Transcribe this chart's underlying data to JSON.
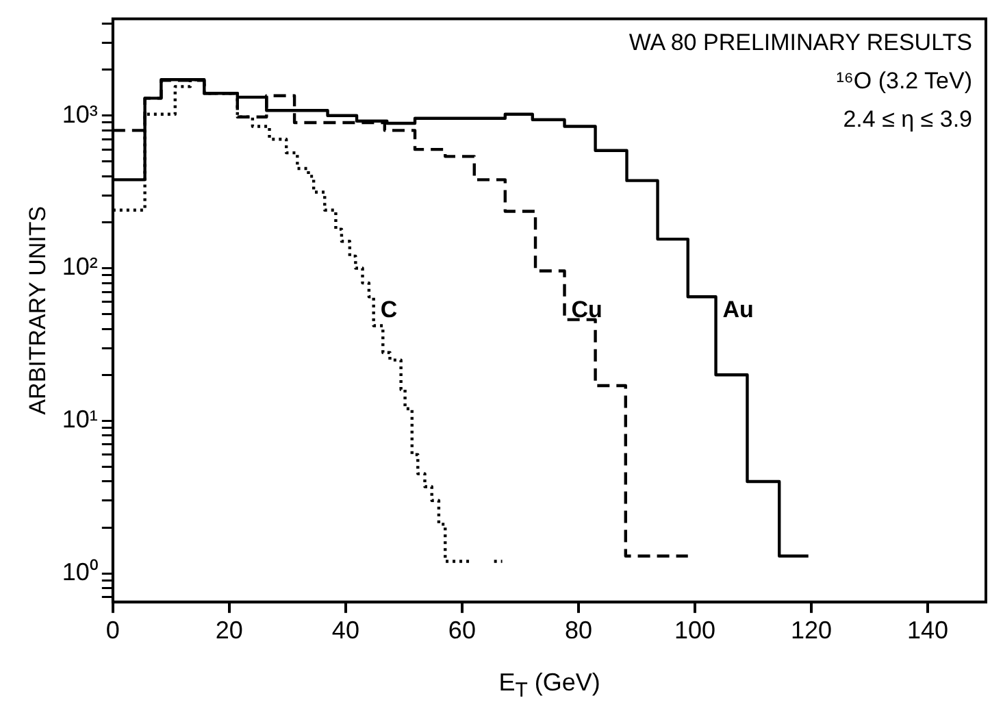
{
  "chart_data": {
    "type": "step",
    "xlabel": "E$_{T}$ (GeV)",
    "ylabel": "ARBITRARY UNITS",
    "log": true,
    "legend": false,
    "xlim": [
      0,
      150
    ],
    "xticks": [
      0,
      20,
      40,
      60,
      80,
      100,
      120,
      140
    ],
    "ylim": [
      0.65,
      4300
    ],
    "yticks": [
      {
        "value": 0.7,
        "label": null
      },
      {
        "value": 0.8,
        "label": null
      },
      {
        "value": 0.9,
        "label": null
      },
      {
        "value": 1,
        "label": "10⁰"
      },
      {
        "value": 2,
        "label": null
      },
      {
        "value": 3,
        "label": null
      },
      {
        "value": 4,
        "label": null
      },
      {
        "value": 5,
        "label": null
      },
      {
        "value": 6,
        "label": null
      },
      {
        "value": 7,
        "label": null
      },
      {
        "value": 8,
        "label": null
      },
      {
        "value": 9,
        "label": null
      },
      {
        "value": 10,
        "label": "10¹"
      },
      {
        "value": 20,
        "label": null
      },
      {
        "value": 30,
        "label": null
      },
      {
        "value": 40,
        "label": null
      },
      {
        "value": 50,
        "label": null
      },
      {
        "value": 60,
        "label": null
      },
      {
        "value": 70,
        "label": null
      },
      {
        "value": 80,
        "label": null
      },
      {
        "value": 90,
        "label": null
      },
      {
        "value": 100,
        "label": "10²"
      },
      {
        "value": 200,
        "label": null
      },
      {
        "value": 300,
        "label": null
      },
      {
        "value": 400,
        "label": null
      },
      {
        "value": 500,
        "label": null
      },
      {
        "value": 600,
        "label": null
      },
      {
        "value": 700,
        "label": null
      },
      {
        "value": 800,
        "label": null
      },
      {
        "value": 900,
        "label": null
      },
      {
        "value": 1000,
        "label": "10³"
      },
      {
        "value": 2000,
        "label": null
      },
      {
        "value": 3000,
        "label": null
      },
      {
        "value": 4000,
        "label": null
      }
    ],
    "annotations": [
      "WA 80 PRELIMINARY RESULTS",
      "¹⁶O (3.2 TeV)",
      "2.4 ≤ η ≤ 3.9"
    ],
    "series": [
      {
        "name": "C",
        "color": "#000000",
        "line_style": "dotted",
        "x": [
          0,
          5.5,
          10.7,
          13.3,
          15.7,
          21.4,
          24,
          26.9,
          29.8,
          31.7,
          33.6,
          34.5,
          36.4,
          38.3,
          39.3,
          40.7,
          41.7,
          42.9,
          44,
          44.8,
          46.4,
          47.6,
          49.5,
          50.2,
          51.4,
          52.4,
          53.6,
          54.8,
          56,
          57.1,
          61.9,
          63.7,
          65.5,
          66.9
        ],
        "values": [
          240,
          1020,
          1550,
          1720,
          1400,
          980,
          850,
          700,
          570,
          450,
          400,
          315,
          240,
          180,
          150,
          120,
          100,
          80,
          65,
          42,
          28,
          25,
          16,
          12,
          6,
          4.5,
          3.7,
          3,
          2.1,
          1.2,
          1.2,
          null,
          1.2,
          1.2
        ]
      },
      {
        "name": "Cu",
        "color": "#000000",
        "line_style": "dashed",
        "x": [
          0,
          5.5,
          8.3,
          15.7,
          21.4,
          26.4,
          31.2,
          46.7,
          51.9,
          57.1,
          62.1,
          67.4,
          72.6,
          77.6,
          82.9,
          88.1,
          98.8
        ],
        "values": [
          800,
          1300,
          1700,
          1400,
          980,
          1350,
          900,
          800,
          600,
          540,
          380,
          236,
          96,
          46,
          17,
          1.3,
          1.3
        ]
      },
      {
        "name": "Au",
        "color": "#000000",
        "line_style": "solid",
        "x": [
          0,
          5.5,
          8.3,
          15.7,
          21.4,
          26.4,
          36.9,
          41.9,
          47.1,
          51.9,
          67.4,
          72.1,
          77.6,
          82.9,
          88.3,
          93.6,
          98.8,
          103.6,
          109,
          114.5,
          119.5
        ],
        "values": [
          380,
          1300,
          1720,
          1400,
          1320,
          1080,
          1000,
          920,
          890,
          960,
          1020,
          940,
          850,
          590,
          375,
          155,
          65,
          20,
          4,
          1.3,
          1.3
        ]
      }
    ]
  }
}
